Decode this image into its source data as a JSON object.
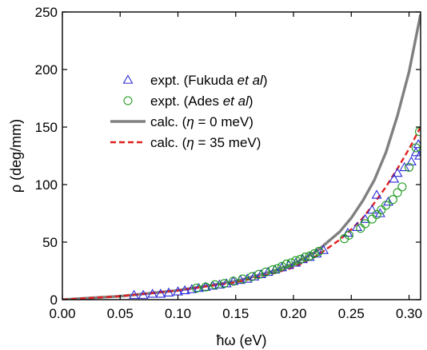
{
  "chart_data": {
    "type": "scatter",
    "xlabel": "ħω (eV)",
    "ylabel": "ρ (deg/mm)",
    "xlim": [
      0.0,
      0.31
    ],
    "ylim": [
      0,
      250
    ],
    "xticks": [
      "0.00",
      "0.05",
      "0.10",
      "0.15",
      "0.20",
      "0.25",
      "0.30"
    ],
    "yticks": [
      "0",
      "50",
      "100",
      "150",
      "200",
      "250"
    ],
    "grid": false,
    "legend_position": "upper-left",
    "series": [
      {
        "name": "expt. (Fukuda et al)",
        "legend_main": "expt. (Fukuda ",
        "legend_italic": "et al",
        "legend_tail": ")",
        "kind": "scatter",
        "marker": "triangle",
        "color": "#2a2ad8",
        "x": [
          0.062,
          0.07,
          0.078,
          0.085,
          0.092,
          0.1,
          0.106,
          0.112,
          0.118,
          0.124,
          0.13,
          0.136,
          0.142,
          0.148,
          0.154,
          0.16,
          0.166,
          0.172,
          0.178,
          0.184,
          0.19,
          0.196,
          0.202,
          0.208,
          0.214,
          0.22,
          0.226,
          0.247,
          0.255,
          0.262,
          0.268,
          0.272,
          0.275,
          0.282,
          0.287,
          0.29,
          0.296,
          0.302,
          0.306,
          0.308,
          0.309
        ],
        "y": [
          4,
          4,
          5,
          5,
          6,
          7,
          8,
          9,
          10,
          11,
          12,
          13,
          14,
          16,
          17,
          18,
          20,
          22,
          24,
          26,
          28,
          30,
          32,
          35,
          37,
          40,
          43,
          58,
          63,
          70,
          78,
          91,
          75,
          85,
          105,
          110,
          115,
          120,
          128,
          135,
          125
        ]
      },
      {
        "name": "expt. (Ades et al)",
        "legend_main": "expt. (Ades ",
        "legend_italic": "et al",
        "legend_tail": ")",
        "kind": "scatter",
        "marker": "circle",
        "color": "#1f9a1f",
        "x": [
          0.116,
          0.124,
          0.132,
          0.14,
          0.148,
          0.156,
          0.164,
          0.17,
          0.176,
          0.182,
          0.186,
          0.19,
          0.194,
          0.198,
          0.202,
          0.206,
          0.21,
          0.214,
          0.218,
          0.222,
          0.244,
          0.248,
          0.258,
          0.262,
          0.268,
          0.272,
          0.276,
          0.28,
          0.286,
          0.29,
          0.294,
          0.3,
          0.306,
          0.309
        ],
        "y": [
          10,
          11,
          13,
          14,
          16,
          18,
          20,
          22,
          24,
          26,
          27,
          29,
          31,
          32,
          34,
          35,
          37,
          38,
          40,
          42,
          53,
          56,
          62,
          66,
          70,
          74,
          78,
          82,
          87,
          93,
          98,
          115,
          132,
          146
        ]
      },
      {
        "name": "calc. (η = 0 meV)",
        "legend_main": "calc. (",
        "legend_italic": "η",
        "legend_tail": " = 0 meV)",
        "kind": "line",
        "style": "solid",
        "color": "#808080",
        "x": [
          0.0,
          0.05,
          0.1,
          0.15,
          0.18,
          0.2,
          0.22,
          0.24,
          0.25,
          0.26,
          0.27,
          0.28,
          0.29,
          0.3,
          0.31
        ],
        "y": [
          0,
          3,
          8,
          16,
          24,
          31,
          42,
          59,
          71,
          86,
          104,
          128,
          160,
          198,
          248
        ]
      },
      {
        "name": "calc. (η = 35 meV)",
        "legend_main": "calc. (",
        "legend_italic": "η",
        "legend_tail": " = 35 meV)",
        "kind": "line",
        "style": "dashed",
        "color": "#e02020",
        "x": [
          0.0,
          0.05,
          0.1,
          0.15,
          0.18,
          0.2,
          0.22,
          0.24,
          0.25,
          0.26,
          0.27,
          0.28,
          0.29,
          0.3,
          0.31
        ],
        "y": [
          0,
          3,
          8,
          15,
          22,
          28,
          38,
          52,
          61,
          71,
          84,
          98,
          114,
          131,
          150
        ]
      }
    ]
  }
}
